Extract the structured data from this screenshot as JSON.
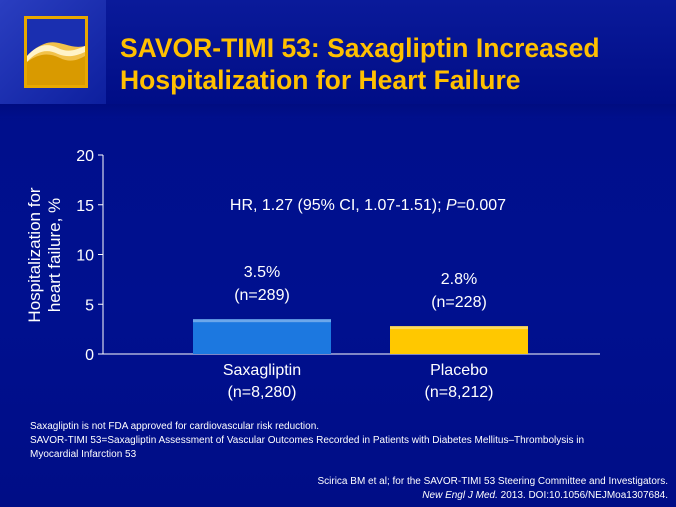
{
  "slide": {
    "title_line1": "SAVOR-TIMI 53: Saxagliptin Increased",
    "title_line2": "Hospitalization for Heart Failure",
    "accent_color": "#ffc000",
    "background_color": "#000f8c"
  },
  "chart_data": {
    "type": "bar",
    "ylabel_line1": "Hospitalization for",
    "ylabel_line2": "heart failure, %",
    "ylim": [
      0,
      20
    ],
    "yticks": [
      0,
      5,
      10,
      15,
      20
    ],
    "annotation_prefix": "HR, 1.27 (95% CI, 1.07-1.51); ",
    "annotation_p_label": "P",
    "annotation_p_value": "=0.007",
    "bars": [
      {
        "category": "Saxagliptin",
        "n_label": "(n=8,280)",
        "value": 3.5,
        "value_label": "3.5%",
        "events_label": "(n=289)",
        "color": "#1c78e0"
      },
      {
        "category": "Placebo",
        "n_label": "(n=8,212)",
        "value": 2.8,
        "value_label": "2.8%",
        "events_label": "(n=228)",
        "color": "#ffc800"
      }
    ]
  },
  "footnotes": {
    "line1": "Saxagliptin is not FDA approved for cardiovascular risk reduction.",
    "line2": "SAVOR-TIMI 53=Saxagliptin Assessment of Vascular Outcomes Recorded in Patients with Diabetes Mellitus–Thrombolysis in",
    "line3": "Myocardial Infarction 53"
  },
  "citation": {
    "line1": "Scirica BM et al; for the SAVOR-TIMI 53 Steering Committee and Investigators.",
    "journal": "New Engl J Med.",
    "rest": " 2013. DOI:10.1056/NEJMoa1307684."
  }
}
